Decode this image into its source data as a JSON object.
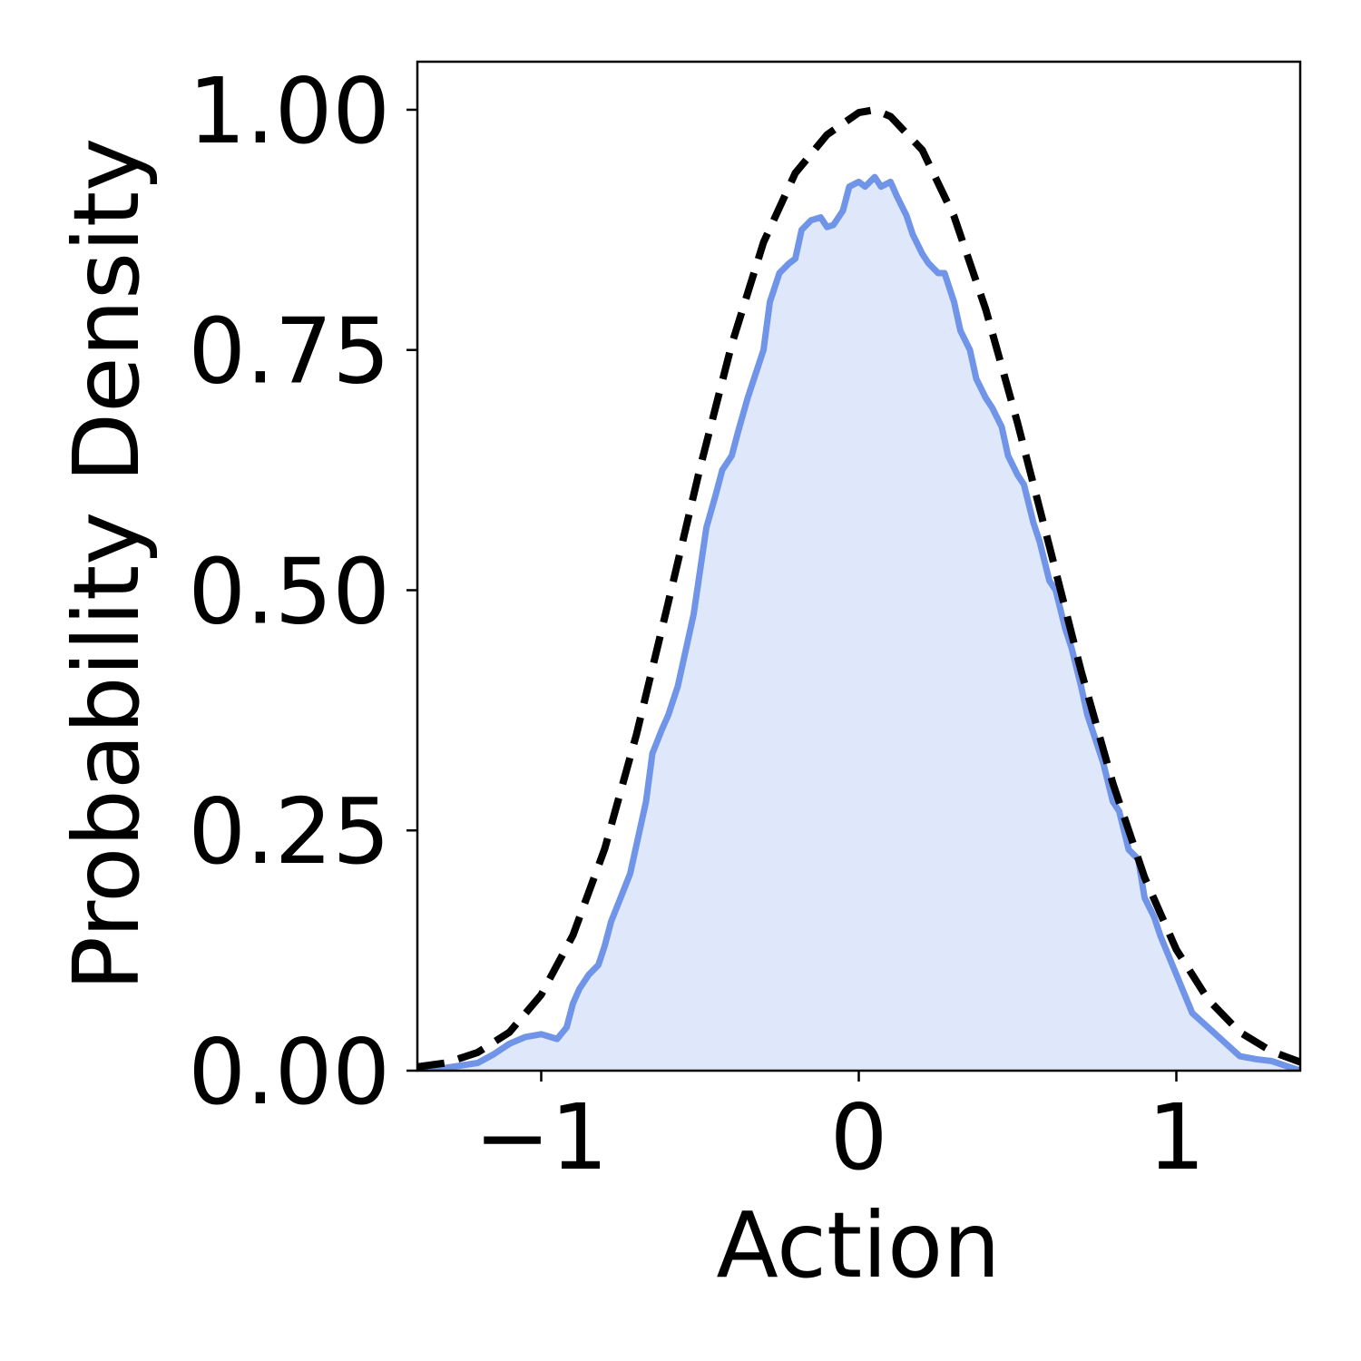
{
  "chart_data": {
    "type": "area",
    "title": "",
    "xlabel": "Action",
    "ylabel": "Probability Density",
    "xlim": [
      -1.39,
      1.39
    ],
    "ylim": [
      0,
      1.05
    ],
    "xticks": [
      -1,
      0,
      1
    ],
    "xtick_labels": [
      "−1",
      "0",
      "1"
    ],
    "yticks": [
      0,
      0.25,
      0.5,
      0.75,
      1.0
    ],
    "ytick_labels": [
      "0.00",
      "0.25",
      "0.50",
      "0.75",
      "1.00"
    ],
    "grid": false,
    "legend": "none",
    "colors": {
      "empirical_line": "#7094e8",
      "empirical_fill": "#dfe8fa",
      "reference_line": "#000000"
    },
    "series": [
      {
        "style": "solid line with filled area",
        "x": [
          -1.39,
          -1.3,
          -1.2,
          -1.15,
          -1.1,
          -1.05,
          -1.0,
          -0.98,
          -0.95,
          -0.92,
          -0.9,
          -0.88,
          -0.85,
          -0.82,
          -0.8,
          -0.78,
          -0.75,
          -0.72,
          -0.7,
          -0.67,
          -0.65,
          -0.62,
          -0.6,
          -0.57,
          -0.55,
          -0.52,
          -0.5,
          -0.48,
          -0.45,
          -0.43,
          -0.4,
          -0.38,
          -0.35,
          -0.32,
          -0.3,
          -0.28,
          -0.25,
          -0.22,
          -0.2,
          -0.18,
          -0.15,
          -0.12,
          -0.1,
          -0.08,
          -0.05,
          -0.03,
          0.0,
          0.02,
          0.05,
          0.07,
          0.1,
          0.12,
          0.15,
          0.17,
          0.2,
          0.22,
          0.25,
          0.27,
          0.3,
          0.32,
          0.35,
          0.37,
          0.4,
          0.42,
          0.45,
          0.47,
          0.5,
          0.52,
          0.55,
          0.57,
          0.6,
          0.62,
          0.65,
          0.67,
          0.7,
          0.72,
          0.75,
          0.77,
          0.8,
          0.82,
          0.85,
          0.88,
          0.9,
          0.93,
          0.95,
          1.0,
          1.05,
          1.1,
          1.15,
          1.2,
          1.25,
          1.3,
          1.39
        ],
        "y": [
          0.0,
          0.003,
          0.008,
          0.017,
          0.028,
          0.035,
          0.038,
          0.036,
          0.033,
          0.045,
          0.07,
          0.085,
          0.1,
          0.11,
          0.13,
          0.155,
          0.18,
          0.205,
          0.235,
          0.28,
          0.33,
          0.355,
          0.37,
          0.4,
          0.43,
          0.475,
          0.52,
          0.565,
          0.6,
          0.625,
          0.64,
          0.665,
          0.7,
          0.73,
          0.75,
          0.8,
          0.83,
          0.84,
          0.845,
          0.875,
          0.885,
          0.888,
          0.878,
          0.88,
          0.895,
          0.92,
          0.925,
          0.92,
          0.93,
          0.92,
          0.925,
          0.91,
          0.89,
          0.87,
          0.85,
          0.84,
          0.83,
          0.83,
          0.8,
          0.77,
          0.75,
          0.72,
          0.7,
          0.69,
          0.67,
          0.64,
          0.62,
          0.61,
          0.57,
          0.55,
          0.51,
          0.5,
          0.46,
          0.44,
          0.4,
          0.37,
          0.34,
          0.32,
          0.28,
          0.27,
          0.23,
          0.22,
          0.18,
          0.16,
          0.14,
          0.1,
          0.06,
          0.045,
          0.03,
          0.015,
          0.012,
          0.01,
          0.0
        ]
      },
      {
        "style": "dashed line",
        "x": [
          -1.39,
          -1.3,
          -1.2,
          -1.1,
          -1.0,
          -0.9,
          -0.8,
          -0.7,
          -0.6,
          -0.5,
          -0.4,
          -0.3,
          -0.2,
          -0.1,
          0.0,
          0.05,
          0.1,
          0.2,
          0.3,
          0.4,
          0.5,
          0.6,
          0.7,
          0.8,
          0.9,
          1.0,
          1.1,
          1.2,
          1.3,
          1.39
        ],
        "y": [
          0.004,
          0.008,
          0.019,
          0.04,
          0.079,
          0.141,
          0.231,
          0.35,
          0.487,
          0.627,
          0.756,
          0.862,
          0.934,
          0.974,
          0.997,
          1.0,
          0.993,
          0.958,
          0.889,
          0.792,
          0.674,
          0.546,
          0.416,
          0.299,
          0.201,
          0.126,
          0.074,
          0.04,
          0.02,
          0.009
        ]
      }
    ]
  }
}
